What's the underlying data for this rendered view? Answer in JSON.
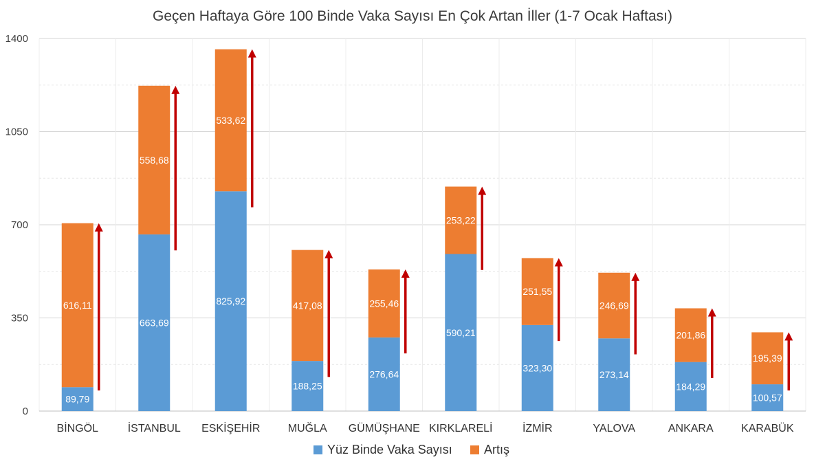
{
  "chart_data": {
    "type": "bar",
    "stacked": true,
    "title": "Geçen Haftaya Göre 100 Binde Vaka Sayısı En Çok Artan İller (1-7 Ocak Haftası)",
    "xlabel": "",
    "ylabel": "",
    "ylim": [
      0,
      1400
    ],
    "yticks": [
      0,
      350,
      700,
      1050,
      1400
    ],
    "categories": [
      "BİNGÖL",
      "İSTANBUL",
      "ESKİŞEHİR",
      "MUĞLA",
      "GÜMÜŞHANE",
      "KIRKLARELİ",
      "İZMİR",
      "YALOVA",
      "ANKARA",
      "KARABÜK"
    ],
    "series": [
      {
        "name": "Yüz Binde Vaka Sayısı",
        "color": "#5b9bd5",
        "values": [
          89.79,
          663.69,
          825.92,
          188.25,
          276.64,
          590.21,
          323.3,
          273.14,
          184.29,
          100.57
        ],
        "labels": [
          "89,79",
          "663,69",
          "825,92",
          "188,25",
          "276,64",
          "590,21",
          "323,30",
          "273,14",
          "184,29",
          "100,57"
        ]
      },
      {
        "name": "Artış",
        "color": "#ed7d31",
        "values": [
          616.11,
          558.68,
          533.62,
          417.08,
          255.46,
          253.22,
          251.55,
          246.69,
          201.86,
          195.39
        ],
        "labels": [
          "616,11",
          "558,68",
          "533,62",
          "417,08",
          "255,46",
          "253,22",
          "251,55",
          "246,69",
          "201,86",
          "195,39"
        ]
      }
    ],
    "grid": true,
    "legend_position": "bottom",
    "annotations": "red upward arrows beside each bar",
    "arrow_color": "#c00000"
  }
}
